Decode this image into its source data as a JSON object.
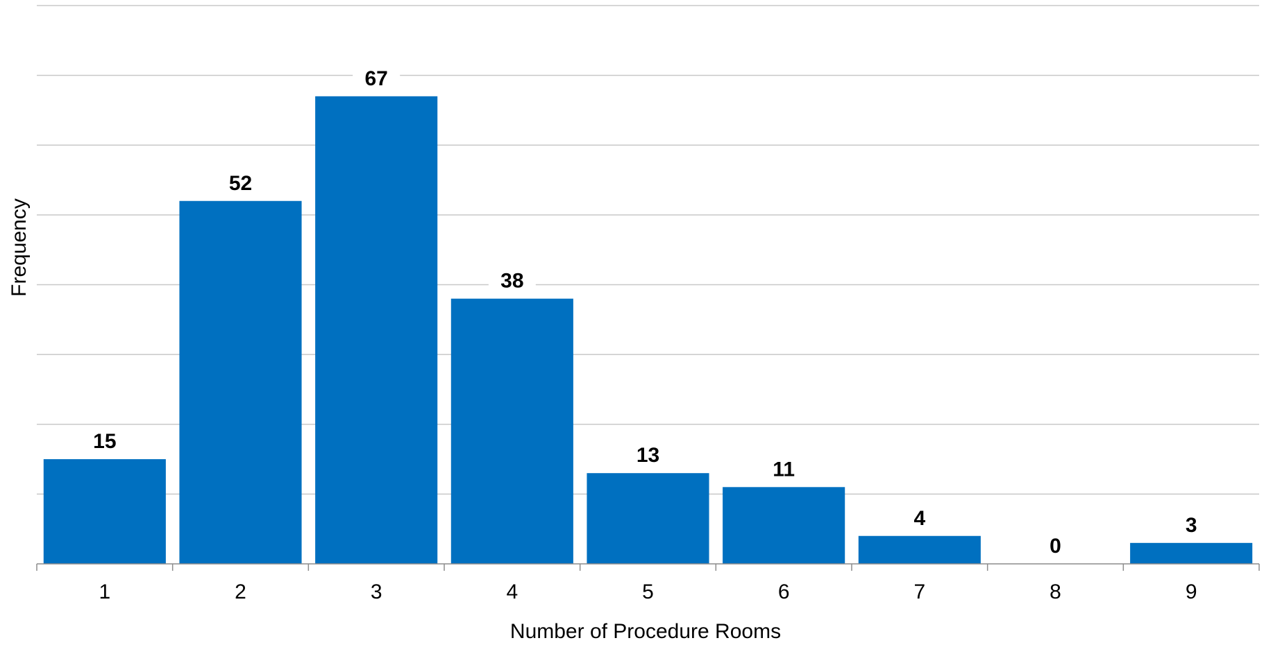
{
  "chart_data": {
    "type": "bar",
    "categories": [
      "1",
      "2",
      "3",
      "4",
      "5",
      "6",
      "7",
      "8",
      "9"
    ],
    "values": [
      15,
      52,
      67,
      38,
      13,
      11,
      4,
      0,
      3
    ],
    "title": "",
    "xlabel": "Number of Procedure Rooms",
    "ylabel": "Frequency",
    "ylim": [
      0,
      80
    ],
    "y_gridline_step": 10,
    "y_tick_labels_shown": false,
    "grid": true,
    "bar_color": "#0070c0",
    "data_labels": true
  }
}
